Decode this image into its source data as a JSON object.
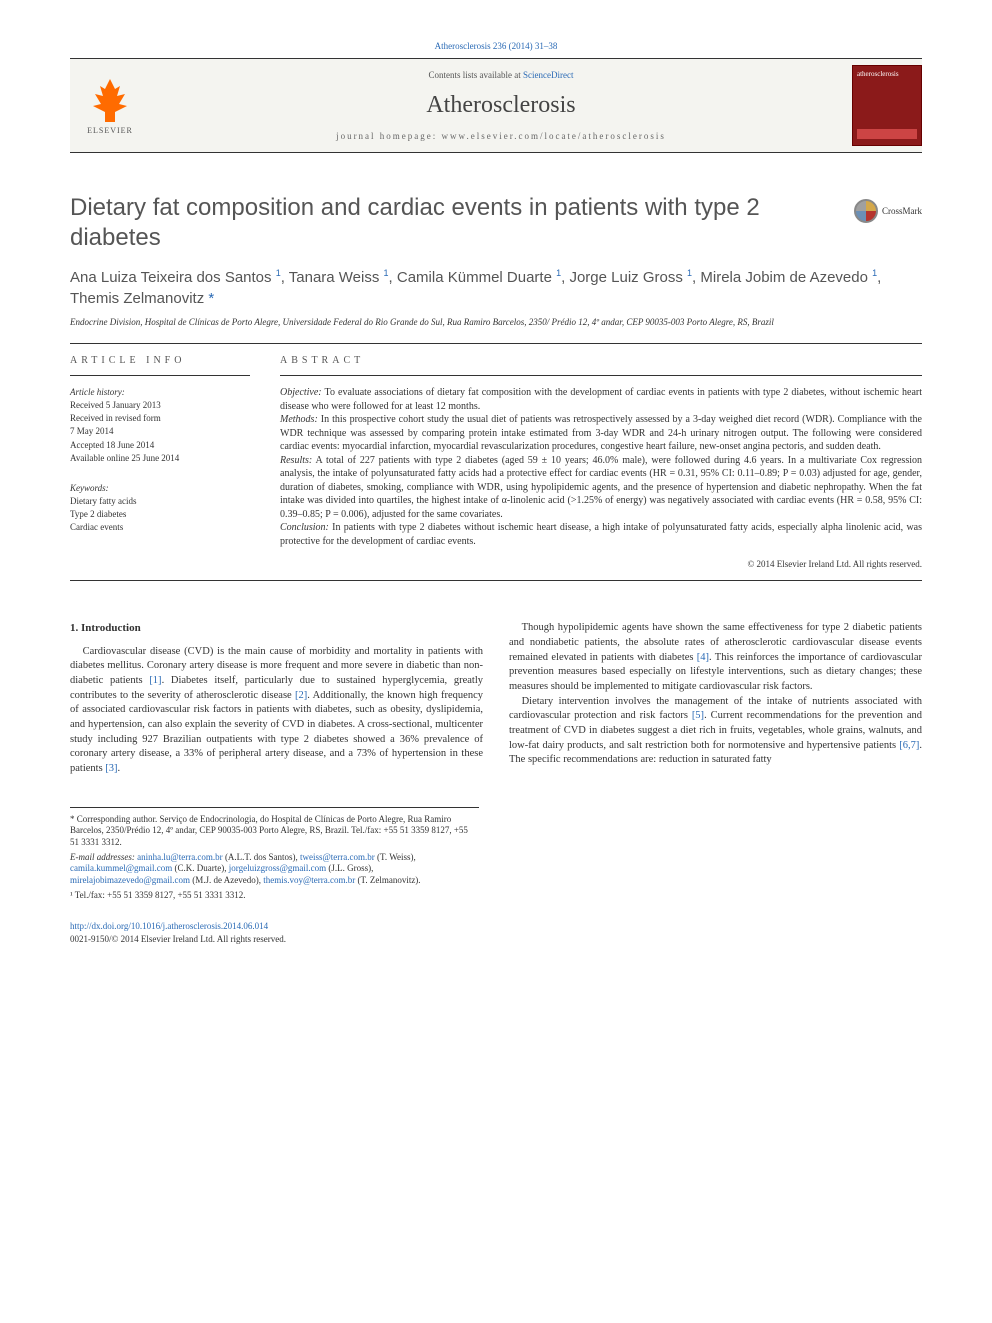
{
  "header": {
    "citation": "Atherosclerosis 236 (2014) 31–38",
    "contents_prefix": "Contents lists available at ",
    "contents_link": "ScienceDirect",
    "journal_name": "Atherosclerosis",
    "homepage_label": "journal homepage: ",
    "homepage_url": "www.elsevier.com/locate/atherosclerosis",
    "publisher_logo": "ELSEVIER",
    "cover_text": "atherosclerosis"
  },
  "crossmark": {
    "label": "CrossMark"
  },
  "title": "Dietary fat composition and cardiac events in patients with type 2 diabetes",
  "authors_html": "Ana Luiza Teixeira dos Santos <sup>1</sup>, Tanara Weiss <sup>1</sup>, Camila Kümmel Duarte <sup>1</sup>, Jorge Luiz Gross <sup>1</sup>, Mirela Jobim de Azevedo <sup>1</sup>, Themis Zelmanovitz <span class='star'>*</span>",
  "affiliation": "Endocrine Division, Hospital de Clínicas de Porto Alegre, Universidade Federal do Rio Grande do Sul, Rua Ramiro Barcelos, 2350/ Prédio 12, 4º andar, CEP 90035-003 Porto Alegre, RS, Brazil",
  "article_info": {
    "heading": "ARTICLE INFO",
    "history_label": "Article history:",
    "received": "Received 5 January 2013",
    "revised1": "Received in revised form",
    "revised2": "7 May 2014",
    "accepted": "Accepted 18 June 2014",
    "online": "Available online 25 June 2014",
    "keywords_label": "Keywords:",
    "kw1": "Dietary fatty acids",
    "kw2": "Type 2 diabetes",
    "kw3": "Cardiac events"
  },
  "abstract": {
    "heading": "ABSTRACT",
    "objective_label": "Objective:",
    "objective": " To evaluate associations of dietary fat composition with the development of cardiac events in patients with type 2 diabetes, without ischemic heart disease who were followed for at least 12 months.",
    "methods_label": "Methods:",
    "methods": " In this prospective cohort study the usual diet of patients was retrospectively assessed by a 3-day weighed diet record (WDR). Compliance with the WDR technique was assessed by comparing protein intake estimated from 3-day WDR and 24-h urinary nitrogen output. The following were considered cardiac events: myocardial infarction, myocardial revascularization procedures, congestive heart failure, new-onset angina pectoris, and sudden death.",
    "results_label": "Results:",
    "results": " A total of 227 patients with type 2 diabetes (aged 59 ± 10 years; 46.0% male), were followed during 4.6 years. In a multivariate Cox regression analysis, the intake of polyunsaturated fatty acids had a protective effect for cardiac events (HR = 0.31, 95% CI: 0.11–0.89; P = 0.03) adjusted for age, gender, duration of diabetes, smoking, compliance with WDR, using hypolipidemic agents, and the presence of hypertension and diabetic nephropathy. When the fat intake was divided into quartiles, the highest intake of α-linolenic acid (>1.25% of energy) was negatively associated with cardiac events (HR = 0.58, 95% CI: 0.39–0.85; P = 0.006), adjusted for the same covariates.",
    "conclusion_label": "Conclusion:",
    "conclusion": " In patients with type 2 diabetes without ischemic heart disease, a high intake of polyunsaturated fatty acids, especially alpha linolenic acid, was protective for the development of cardiac events.",
    "copyright": "© 2014 Elsevier Ireland Ltd. All rights reserved."
  },
  "section1": {
    "heading": "1. Introduction",
    "p1a": "Cardiovascular disease (CVD) is the main cause of morbidity and mortality in patients with diabetes mellitus. Coronary artery disease is more frequent and more severe in diabetic than non-diabetic patients ",
    "r1": "[1]",
    "p1b": ". Diabetes itself, particularly due to sustained hyperglycemia, greatly contributes to the severity of atherosclerotic disease ",
    "r2": "[2]",
    "p1c": ". Additionally, the known high frequency of associated cardiovascular risk factors in patients with diabetes, such as obesity, dyslipidemia, and hypertension, can also explain the severity of CVD in diabetes. A cross-sectional, multicenter study including 927 Brazilian outpatients with type 2 diabetes showed a 36% prevalence of coronary artery disease, a 33% of peripheral artery disease, and a 73% of hypertension in these patients ",
    "r3": "[3]",
    "p1d": ".",
    "p2a": "Though hypolipidemic agents have shown the same effectiveness for type 2 diabetic patients and nondiabetic patients, the absolute rates of atherosclerotic cardiovascular disease events remained elevated in patients with diabetes ",
    "r4": "[4]",
    "p2b": ". This reinforces the importance of cardiovascular prevention measures based especially on lifestyle interventions, such as dietary changes; these measures should be implemented to mitigate cardiovascular risk factors.",
    "p3a": "Dietary intervention involves the management of the intake of nutrients associated with cardiovascular protection and risk factors ",
    "r5": "[5]",
    "p3b": ". Current recommendations for the prevention and treatment of CVD in diabetes suggest a diet rich in fruits, vegetables, whole grains, walnuts, and low-fat dairy products, and salt restriction both for normotensive and hypertensive patients ",
    "r67": "[6,7]",
    "p3c": ". The specific recommendations are: reduction in saturated fatty"
  },
  "footnotes": {
    "corr_label": "* Corresponding author. ",
    "corr_text": "Serviço de Endocrinologia, do Hospital de Clínicas de Porto Alegre, Rua Ramiro Barcelos, 2350/Prédio 12, 4º andar, CEP 90035-003 Porto Alegre, RS, Brazil. Tel./fax: +55 51 3359 8127, +55 51 3331 3312.",
    "email_label": "E-mail addresses: ",
    "e1": "aninha.lu@terra.com.br",
    "n1": " (A.L.T. dos Santos), ",
    "e2": "tweiss@terra.com.br",
    "n2": " (T. Weiss), ",
    "e3": "camila.kummel@gmail.com",
    "n3": " (C.K. Duarte), ",
    "e4": "jorgeluizgross@gmail.com",
    "n4": " (J.L. Gross), ",
    "e5": "mirelajobimazevedo@gmail.com",
    "n5": " (M.J. de Azevedo), ",
    "e6": "themis.voy@terra.com.br",
    "n6": " (T. Zelmanovitz).",
    "note1": "¹ Tel./fax: +55 51 3359 8127, +55 51 3331 3312."
  },
  "bottom": {
    "doi": "http://dx.doi.org/10.1016/j.atherosclerosis.2014.06.014",
    "issn": "0021-9150/© 2014 Elsevier Ireland Ltd. All rights reserved."
  },
  "colors": {
    "link": "#2a6ab5",
    "elsevier_orange": "#ff6b00",
    "cover_bg": "#8b1a1a"
  }
}
